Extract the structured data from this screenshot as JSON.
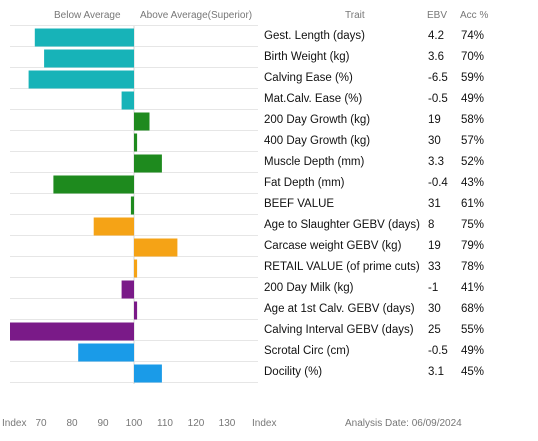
{
  "chart_data": {
    "type": "bar",
    "orientation": "horizontal",
    "grid": true,
    "xlim": [
      60,
      140
    ],
    "x_ticks": [
      70,
      80,
      90,
      100,
      110,
      120,
      130
    ],
    "baseline": 100,
    "headers": {
      "below": "Below Average",
      "above": "Above Average(Superior)",
      "trait": "Trait",
      "ebv": "EBV",
      "acc": "Acc %"
    },
    "footer": {
      "index_left": "Index",
      "index_right": "Index",
      "analysis_date": "Analysis Date: 06/09/2024"
    },
    "rows": [
      {
        "trait": "Gest. Length (days)",
        "ebv": "4.2",
        "acc": "74%",
        "index": 68,
        "color": "#17b3b8"
      },
      {
        "trait": "Birth Weight (kg)",
        "ebv": "3.6",
        "acc": "70%",
        "index": 71,
        "color": "#17b3b8"
      },
      {
        "trait": "Calving Ease (%)",
        "ebv": "-6.5",
        "acc": "59%",
        "index": 66,
        "color": "#17b3b8"
      },
      {
        "trait": "Mat.Calv. Ease (%)",
        "ebv": "-0.5",
        "acc": "49%",
        "index": 96,
        "color": "#17b3b8"
      },
      {
        "trait": "200 Day Growth (kg)",
        "ebv": "19",
        "acc": "58%",
        "index": 105,
        "color": "#1e8a1e"
      },
      {
        "trait": "400 Day Growth (kg)",
        "ebv": "30",
        "acc": "57%",
        "index": 101,
        "color": "#1e8a1e"
      },
      {
        "trait": "Muscle Depth (mm)",
        "ebv": "3.3",
        "acc": "52%",
        "index": 109,
        "color": "#1e8a1e"
      },
      {
        "trait": "Fat Depth (mm)",
        "ebv": "-0.4",
        "acc": "43%",
        "index": 74,
        "color": "#1e8a1e"
      },
      {
        "trait": "BEEF VALUE",
        "ebv": "31",
        "acc": "61%",
        "index": 99,
        "color": "#1e8a1e"
      },
      {
        "trait": "Age to Slaughter GEBV (days)",
        "ebv": "8",
        "acc": "75%",
        "index": 87,
        "color": "#f5a316"
      },
      {
        "trait": "Carcase weight GEBV (kg)",
        "ebv": "19",
        "acc": "79%",
        "index": 114,
        "color": "#f5a316"
      },
      {
        "trait": "RETAIL VALUE (of prime cuts)",
        "ebv": "33",
        "acc": "78%",
        "index": 101,
        "color": "#f5a316"
      },
      {
        "trait": "200 Day Milk (kg)",
        "ebv": "-1",
        "acc": "41%",
        "index": 96,
        "color": "#7a1a88"
      },
      {
        "trait": "Age at 1st Calv. GEBV (days)",
        "ebv": "30",
        "acc": "68%",
        "index": 101,
        "color": "#7a1a88"
      },
      {
        "trait": "Calving Interval GEBV (days)",
        "ebv": "25",
        "acc": "55%",
        "index": 60,
        "color": "#7a1a88"
      },
      {
        "trait": "Scrotal Circ (cm)",
        "ebv": "-0.5",
        "acc": "49%",
        "index": 82,
        "color": "#1a9be8"
      },
      {
        "trait": "Docility (%)",
        "ebv": "3.1",
        "acc": "45%",
        "index": 109,
        "color": "#1a9be8"
      }
    ]
  }
}
